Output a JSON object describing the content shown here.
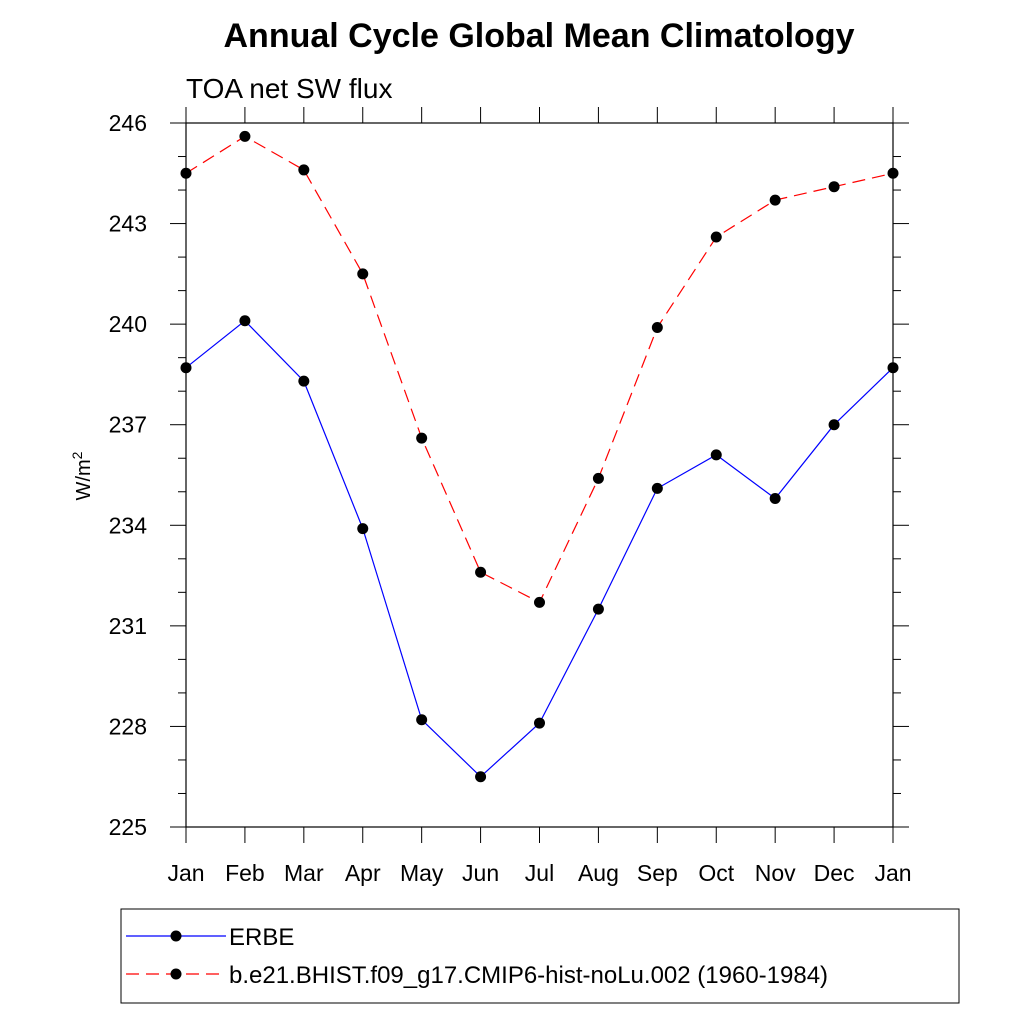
{
  "chart_data": {
    "type": "line",
    "title": "Annual Cycle Global Mean Climatology",
    "subtitle": "TOA net SW flux",
    "ylabel": "W/m",
    "ylabel_sup": "2",
    "xlabel": "",
    "categories": [
      "Jan",
      "Feb",
      "Mar",
      "Apr",
      "May",
      "Jun",
      "Jul",
      "Aug",
      "Sep",
      "Oct",
      "Nov",
      "Dec",
      "Jan"
    ],
    "ylim": [
      225,
      246
    ],
    "yticks": [
      225,
      228,
      231,
      234,
      237,
      240,
      243,
      246
    ],
    "legend_position": "bottom",
    "series": [
      {
        "name": "ERBE",
        "color": "#0000ff",
        "dash": "solid",
        "values": [
          238.7,
          240.1,
          238.3,
          233.9,
          228.2,
          226.5,
          228.1,
          231.5,
          235.1,
          236.1,
          234.8,
          237.0,
          238.7
        ]
      },
      {
        "name": "b.e21.BHIST.f09_g17.CMIP6-hist-noLu.002 (1960-1984)",
        "color": "#ff0000",
        "dash": "dashed",
        "values": [
          244.5,
          245.6,
          244.6,
          241.5,
          236.6,
          232.6,
          231.7,
          235.4,
          239.9,
          242.6,
          243.7,
          244.1,
          244.5
        ]
      }
    ]
  }
}
